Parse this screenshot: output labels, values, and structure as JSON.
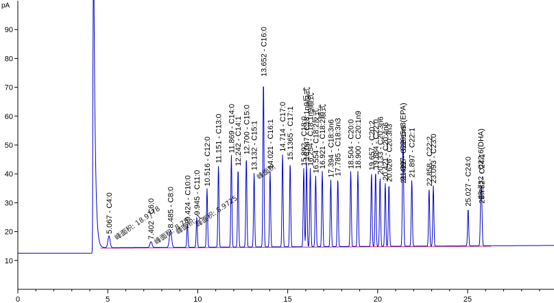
{
  "chart_data": {
    "type": "line",
    "title": "",
    "xlabel": "",
    "ylabel": "pA",
    "xlim": [
      0,
      29.8
    ],
    "ylim": [
      0,
      100
    ],
    "grid": false,
    "x_ticks": [
      0,
      5,
      10,
      15,
      20,
      25
    ],
    "y_ticks": [
      10,
      20,
      30,
      40,
      50,
      60,
      70,
      80,
      90
    ],
    "colors": {
      "signal": "#0000cc",
      "baseline": "#d6186b",
      "axis": "#000000"
    },
    "baseline_level": 12.5,
    "baseline_end_level": 15.2,
    "solvent_peak": {
      "rt": 4.2,
      "height": 100
    },
    "peaks": [
      {
        "label": "5.067 - C4:0",
        "rt": 5.067,
        "height": 18.5
      },
      {
        "label": "7.402 - C6:0",
        "rt": 7.402,
        "height": 16.5
      },
      {
        "label": "8.485 - C8:0",
        "rt": 8.485,
        "height": 20.5
      },
      {
        "label": "9.424 - C10:0",
        "rt": 9.424,
        "height": 23.0
      },
      {
        "label": "9.945 - C11:0",
        "rt": 9.945,
        "height": 25.0
      },
      {
        "label": "10.516 - C12:0",
        "rt": 10.516,
        "height": 35.0
      },
      {
        "label": "11.151 - C13:0",
        "rt": 11.151,
        "height": 43.0
      },
      {
        "label": "11.869 - C14:0",
        "rt": 11.869,
        "height": 46.5
      },
      {
        "label": "12.242 - C14:1",
        "rt": 12.242,
        "height": 42.0
      },
      {
        "label": "12.700 - C15:0",
        "rt": 12.7,
        "height": 46.0
      },
      {
        "label": "13.132 - C15:1",
        "rt": 13.132,
        "height": 40.5
      },
      {
        "label": "13.652 - C16:0",
        "rt": 13.652,
        "height": 73.0
      },
      {
        "label": "14.021 - C16:1",
        "rt": 14.021,
        "height": 41.0
      },
      {
        "label": "14.714 - C17:0",
        "rt": 14.714,
        "height": 47.0
      },
      {
        "label": "15.1365 - C17:1",
        "rt": 15.1365,
        "height": 44.0
      },
      {
        "label": "15.892 - C18:0",
        "rt": 15.892,
        "height": 42.0
      },
      {
        "label": "16.047 - C18:1n9反式",
        "rt": 16.047,
        "height": 44.0
      },
      {
        "label": "16.254 - C18:1n9顺式",
        "rt": 16.254,
        "height": 42.0
      },
      {
        "label": "16.554 - C18:2反式",
        "rt": 16.554,
        "height": 39.5
      },
      {
        "label": "16.921 - C18:2顺式",
        "rt": 16.921,
        "height": 41.0
      },
      {
        "label": "17.394 - C18:3n6",
        "rt": 17.394,
        "height": 38.0
      },
      {
        "label": "17.785 - C18:3n3",
        "rt": 17.785,
        "height": 38.5
      },
      {
        "label": "18.504 - C20:0",
        "rt": 18.504,
        "height": 41.0
      },
      {
        "label": "18.900 - C20:1n9",
        "rt": 18.9,
        "height": 41.0
      },
      {
        "label": "19.657 - C20:2",
        "rt": 19.657,
        "height": 40.5
      },
      {
        "label": "19.884 - C22:0",
        "rt": 19.884,
        "height": 41.0
      },
      {
        "label": "20.133 - C20:3n6",
        "rt": 20.133,
        "height": 39.0
      },
      {
        "label": "20.421 - C20:4n6",
        "rt": 20.421,
        "height": 37.0
      },
      {
        "label": "20.626 - C20:3n3",
        "rt": 20.626,
        "height": 36.5
      },
      {
        "label": "21.422 - C22:1n9",
        "rt": 21.422,
        "height": 36.0
      },
      {
        "label": "21.397 - C20:5n3(EPA)",
        "rt": 21.397,
        "height": 37.0
      },
      {
        "label": "21.897 - C22:1",
        "rt": 21.897,
        "height": 38.0
      },
      {
        "label": "22.858 - C22:2",
        "rt": 22.858,
        "height": 35.0
      },
      {
        "label": "23.093 - C23:0",
        "rt": 23.093,
        "height": 36.0
      },
      {
        "label": "25.027 - C24:0",
        "rt": 25.027,
        "height": 28.0
      },
      {
        "label": "25.732 - C22:6(DHA)",
        "rt": 25.732,
        "height": 30.5
      },
      {
        "label": "25.782 - C24:1",
        "rt": 25.782,
        "height": 29.0
      }
    ],
    "area_annotations": [
      {
        "text": "峰面积: 18.9778",
        "rt": 5.5,
        "value": 17.0
      },
      {
        "text": "峰面积: 8.78",
        "rt": 7.7,
        "value": 15.5
      },
      {
        "text": "峰面积: 1",
        "rt": 8.9,
        "value": 19.0
      },
      {
        "text": "峰面积: 8.9725",
        "rt": 10.0,
        "value": 21.5
      },
      {
        "text": "峰面积",
        "rt": 13.4,
        "value": 38.0
      }
    ]
  }
}
